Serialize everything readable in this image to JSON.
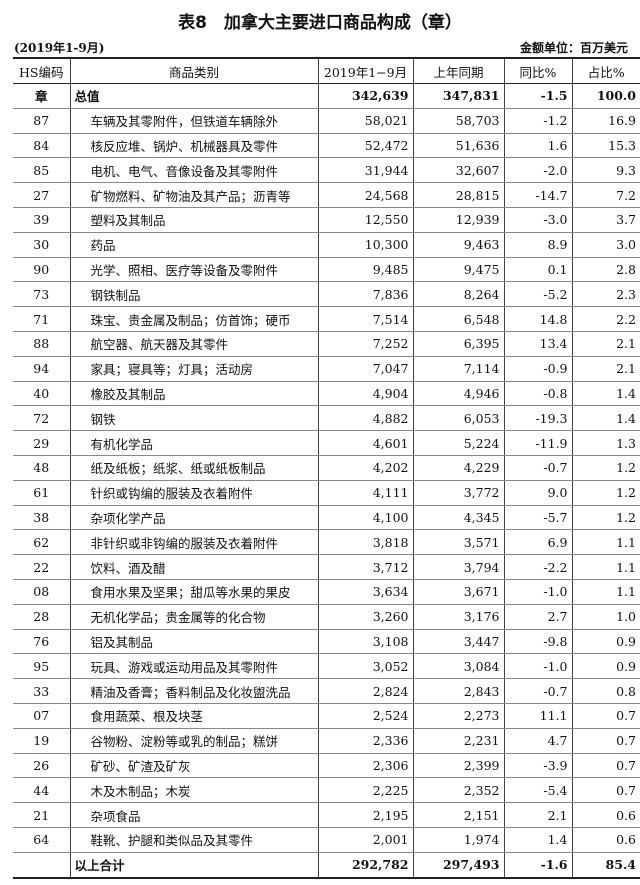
{
  "title": "表8　加拿大主要进口商品构成（章）",
  "period": "(2019年1-9月)",
  "unit": "金额单位：百万美元",
  "headers": [
    "HS编码",
    "商品类别",
    "2019年1−9月",
    "上年同期",
    "同比%",
    "占比%"
  ],
  "total": {
    "hs": "章",
    "name": "总值",
    "cur": "342,639",
    "prev": "347,831",
    "yoy": "-1.5",
    "share": "100.0"
  },
  "rows": [
    [
      "87",
      "车辆及其零附件，但铁道车辆除外",
      "58,021",
      "58,703",
      "-1.2",
      "16.9"
    ],
    [
      "84",
      "核反应堆、锅炉、机械器具及零件",
      "52,472",
      "51,636",
      "1.6",
      "15.3"
    ],
    [
      "85",
      "电机、电气、音像设备及其零附件",
      "31,944",
      "32,607",
      "-2.0",
      "9.3"
    ],
    [
      "27",
      "矿物燃料、矿物油及其产品；沥青等",
      "24,568",
      "28,815",
      "-14.7",
      "7.2"
    ],
    [
      "39",
      "塑料及其制品",
      "12,550",
      "12,939",
      "-3.0",
      "3.7"
    ],
    [
      "30",
      "药品",
      "10,300",
      "9,463",
      "8.9",
      "3.0"
    ],
    [
      "90",
      "光学、照相、医疗等设备及零附件",
      "9,485",
      "9,475",
      "0.1",
      "2.8"
    ],
    [
      "73",
      "钢铁制品",
      "7,836",
      "8,264",
      "-5.2",
      "2.3"
    ],
    [
      "71",
      "珠宝、贵金属及制品；仿首饰；硬币",
      "7,514",
      "6,548",
      "14.8",
      "2.2"
    ],
    [
      "88",
      "航空器、航天器及其零件",
      "7,252",
      "6,395",
      "13.4",
      "2.1"
    ],
    [
      "94",
      "家具；寝具等；灯具；活动房",
      "7,047",
      "7,114",
      "-0.9",
      "2.1"
    ],
    [
      "40",
      "橡胶及其制品",
      "4,904",
      "4,946",
      "-0.8",
      "1.4"
    ],
    [
      "72",
      "钢铁",
      "4,882",
      "6,053",
      "-19.3",
      "1.4"
    ],
    [
      "29",
      "有机化学品",
      "4,601",
      "5,224",
      "-11.9",
      "1.3"
    ],
    [
      "48",
      "纸及纸板；纸浆、纸或纸板制品",
      "4,202",
      "4,229",
      "-0.7",
      "1.2"
    ],
    [
      "61",
      "针织或钩编的服装及衣着附件",
      "4,111",
      "3,772",
      "9.0",
      "1.2"
    ],
    [
      "38",
      "杂项化学产品",
      "4,100",
      "4,345",
      "-5.7",
      "1.2"
    ],
    [
      "62",
      "非针织或非钩编的服装及衣着附件",
      "3,818",
      "3,571",
      "6.9",
      "1.1"
    ],
    [
      "22",
      "饮料、酒及醋",
      "3,712",
      "3,794",
      "-2.2",
      "1.1"
    ],
    [
      "08",
      "食用水果及坚果；甜瓜等水果的果皮",
      "3,634",
      "3,671",
      "-1.0",
      "1.1"
    ],
    [
      "28",
      "无机化学品；贵金属等的化合物",
      "3,260",
      "3,176",
      "2.7",
      "1.0"
    ],
    [
      "76",
      "铝及其制品",
      "3,108",
      "3,447",
      "-9.8",
      "0.9"
    ],
    [
      "95",
      "玩具、游戏或运动用品及其零附件",
      "3,052",
      "3,084",
      "-1.0",
      "0.9"
    ],
    [
      "33",
      "精油及香膏；香料制品及化妆盥洗品",
      "2,824",
      "2,843",
      "-0.7",
      "0.8"
    ],
    [
      "07",
      "食用蔬菜、根及块茎",
      "2,524",
      "2,273",
      "11.1",
      "0.7"
    ],
    [
      "19",
      "谷物粉、淀粉等或乳的制品；糕饼",
      "2,336",
      "2,231",
      "4.7",
      "0.7"
    ],
    [
      "26",
      "矿砂、矿渣及矿灰",
      "2,306",
      "2,399",
      "-3.9",
      "0.7"
    ],
    [
      "44",
      "木及木制品；木炭",
      "2,225",
      "2,352",
      "-5.4",
      "0.7"
    ],
    [
      "21",
      "杂项食品",
      "2,195",
      "2,151",
      "2.1",
      "0.6"
    ],
    [
      "64",
      "鞋靴、护腿和类似品及其零件",
      "2,001",
      "1,974",
      "1.4",
      "0.6"
    ]
  ],
  "subtotal": {
    "hs": "",
    "name": "以上合计",
    "cur": "292,782",
    "prev": "297,493",
    "yoy": "-1.6",
    "share": "85.4"
  }
}
